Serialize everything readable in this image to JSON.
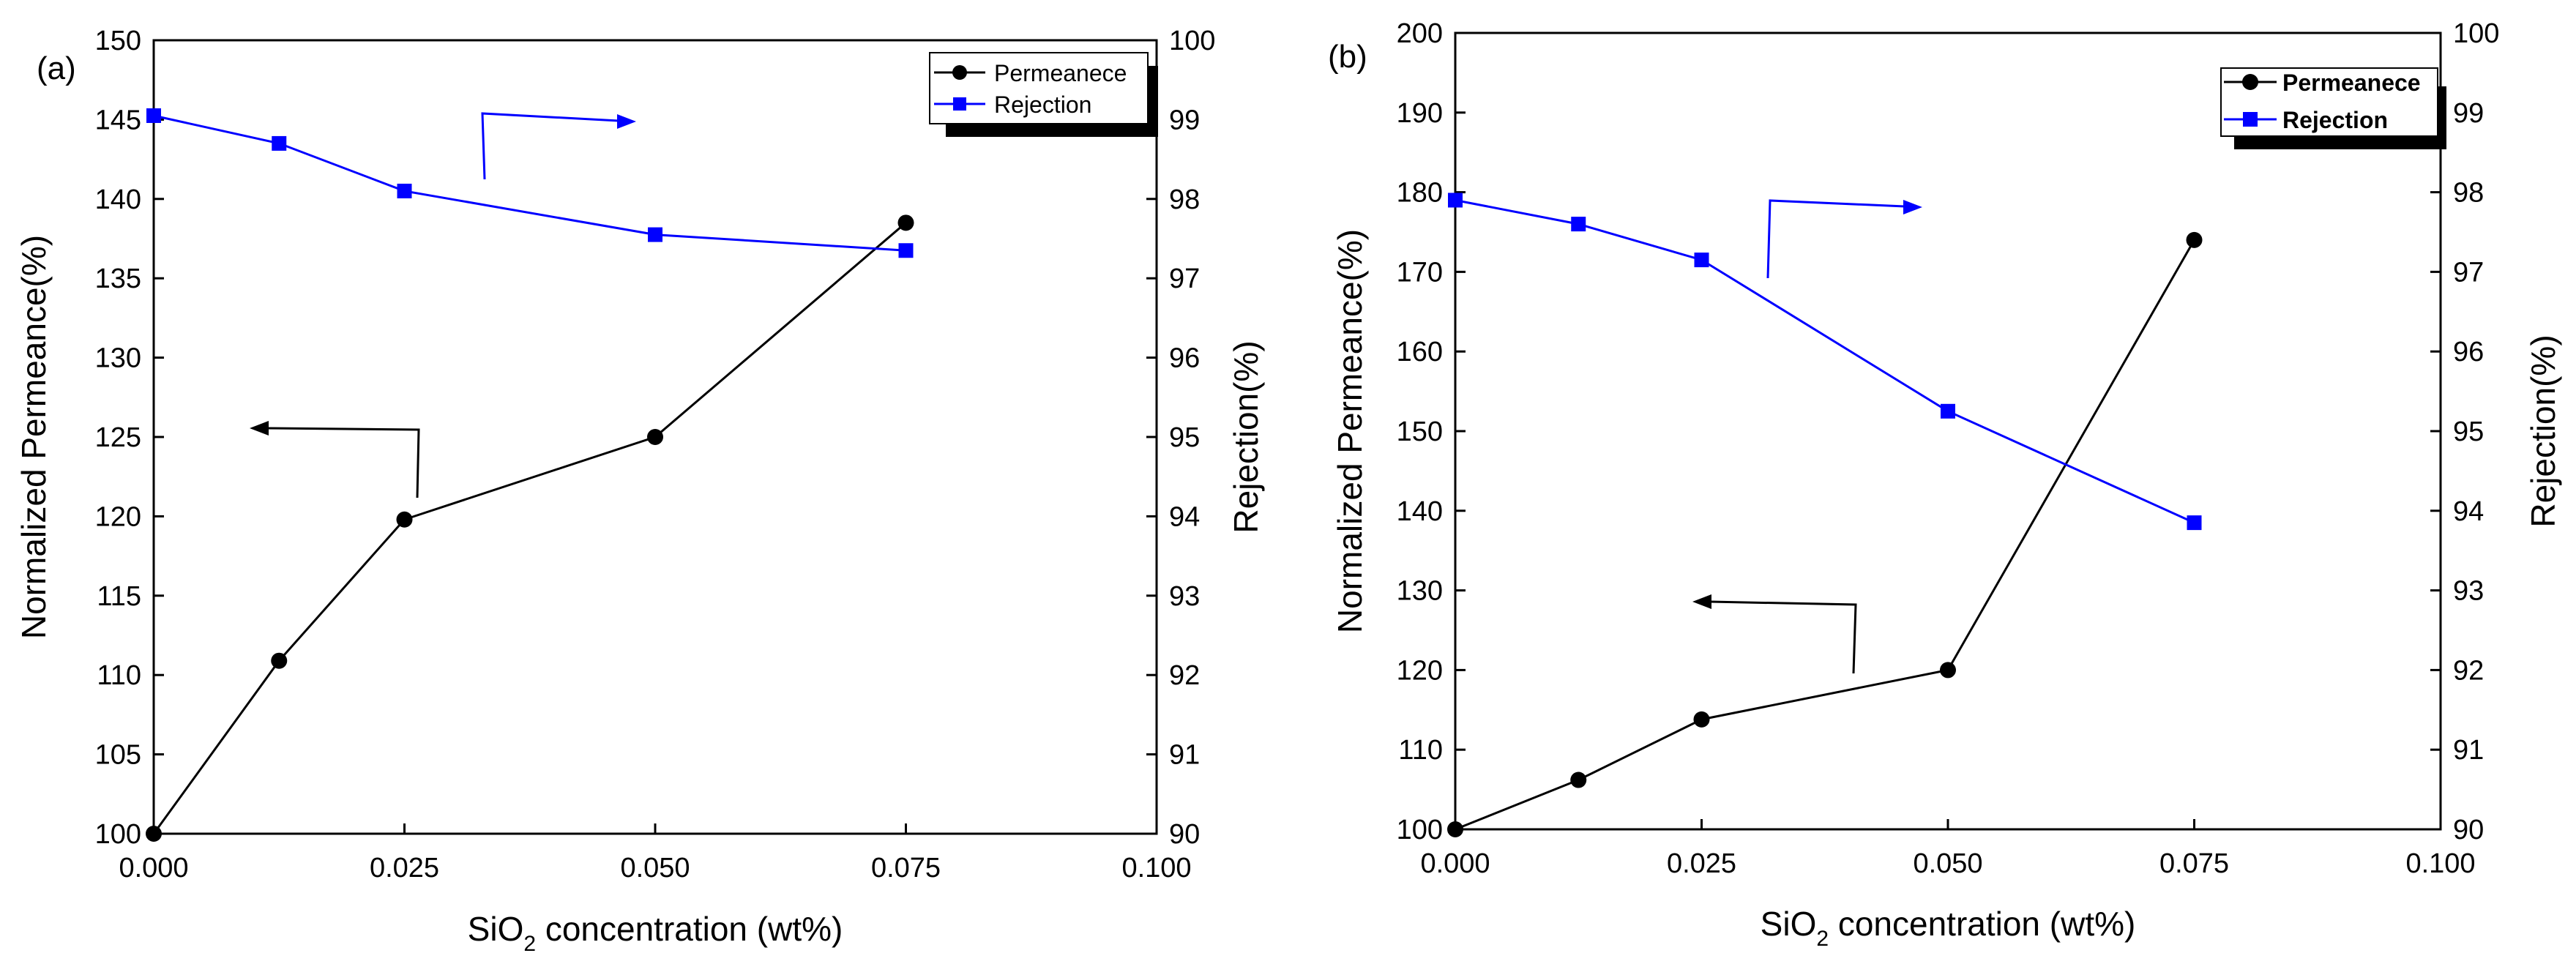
{
  "chart_data": [
    {
      "type": "line",
      "panel_label": "(a)",
      "x": [
        0.0,
        0.0125,
        0.025,
        0.05,
        0.075
      ],
      "xlim": [
        0.0,
        0.1
      ],
      "xticks": [
        "0.000",
        "0.025",
        "0.050",
        "0.075",
        "0.100"
      ],
      "xlabel_main": "SiO",
      "xlabel_sub": "2",
      "xlabel_rest": " concentration (wt%)",
      "ylabel_left": "Normalized Permeance(%)",
      "ylabel_right": "Rejection(%)",
      "ylim_left": [
        100,
        150
      ],
      "yticks_left": [
        "100",
        "105",
        "110",
        "115",
        "120",
        "125",
        "130",
        "135",
        "140",
        "145",
        "150"
      ],
      "ylim_right": [
        90,
        100
      ],
      "yticks_right": [
        "90",
        "91",
        "92",
        "93",
        "94",
        "95",
        "96",
        "97",
        "98",
        "99",
        "100"
      ],
      "legend_bold": false,
      "series": [
        {
          "name": "Permeanece",
          "axis": "left",
          "marker": "circle",
          "color": "#000000",
          "values": [
            100.0,
            110.9,
            119.8,
            125.0,
            138.5
          ]
        },
        {
          "name": "Rejection",
          "axis": "right",
          "marker": "square",
          "color": "#0000ff",
          "values": [
            99.05,
            98.7,
            98.1,
            97.55,
            97.35
          ]
        }
      ]
    },
    {
      "type": "line",
      "panel_label": "(b)",
      "x": [
        0.0,
        0.0125,
        0.025,
        0.05,
        0.075
      ],
      "xlim": [
        0.0,
        0.1
      ],
      "xticks": [
        "0.000",
        "0.025",
        "0.050",
        "0.075",
        "0.100"
      ],
      "xlabel_main": "SiO",
      "xlabel_sub": "2",
      "xlabel_rest": " concentration (wt%)",
      "ylabel_left": "Normalized Permeance(%)",
      "ylabel_right": "Rejection(%)",
      "ylim_left": [
        100,
        200
      ],
      "yticks_left": [
        "100",
        "110",
        "120",
        "130",
        "140",
        "150",
        "160",
        "170",
        "180",
        "190",
        "200"
      ],
      "ylim_right": [
        90,
        100
      ],
      "yticks_right": [
        "90",
        "91",
        "92",
        "93",
        "94",
        "95",
        "96",
        "97",
        "98",
        "99",
        "100"
      ],
      "legend_bold": true,
      "series": [
        {
          "name": "Permeanece",
          "axis": "left",
          "marker": "circle",
          "color": "#000000",
          "values": [
            100.0,
            106.2,
            113.8,
            120.0,
            174.0
          ]
        },
        {
          "name": "Rejection",
          "axis": "right",
          "marker": "square",
          "color": "#0000ff",
          "values": [
            97.9,
            97.6,
            97.15,
            95.25,
            93.85
          ]
        }
      ]
    }
  ]
}
